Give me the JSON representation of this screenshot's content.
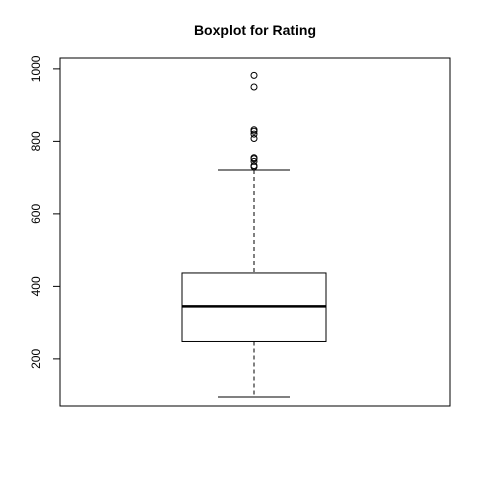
{
  "chart_data": {
    "type": "boxplot",
    "title": "Boxplot for Rating",
    "xlabel": "",
    "ylabel": "",
    "ylim": [
      70,
      1030
    ],
    "yticks": [
      200,
      400,
      600,
      800,
      1000
    ],
    "grid": false,
    "series": [
      {
        "whisker_low": 95,
        "q1": 248,
        "median": 345,
        "q3": 437,
        "whisker_high": 721,
        "outliers": [
          730,
          733,
          745,
          752,
          755,
          808,
          820,
          828,
          832,
          950,
          982
        ]
      }
    ]
  }
}
